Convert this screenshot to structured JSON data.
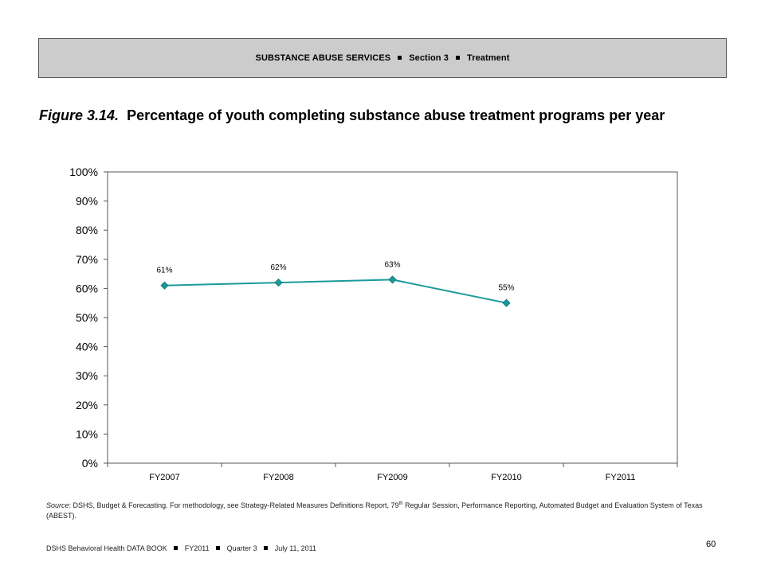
{
  "header": {
    "section_label": "SUBSTANCE ABUSE SERVICES",
    "section_number": "Section 3",
    "section_topic": "Treatment"
  },
  "figure": {
    "number": "Figure 3.14.",
    "title": "Percentage of youth completing substance abuse treatment programs per year"
  },
  "chart_data": {
    "type": "line",
    "categories": [
      "FY2007",
      "FY2008",
      "FY2009",
      "FY2010",
      "FY2011"
    ],
    "series": [
      {
        "values": [
          61,
          62,
          63,
          55,
          null
        ],
        "color": "#1a9a9a"
      }
    ],
    "data_labels": [
      "61%",
      "62%",
      "63%",
      "55%"
    ],
    "yticks": [
      "0%",
      "10%",
      "20%",
      "30%",
      "40%",
      "50%",
      "60%",
      "70%",
      "80%",
      "90%",
      "100%"
    ],
    "ylim": [
      0,
      100
    ],
    "grid": false,
    "legend": "none",
    "marker": "diamond"
  },
  "source": {
    "label": "Source",
    "text_before": ": DSHS, Budget & Forecasting. For methodology, see Strategy-Related Measures Definitions Report, 79",
    "superscript": "th",
    "text_after": " Regular Session, Performance Reporting, Automated Budget and Evaluation System of Texas (ABEST)."
  },
  "footer": {
    "book": "DSHS Behavioral Health DATA BOOK",
    "fiscal_year": "FY2011",
    "quarter": "Quarter 3",
    "date": "July 11, 2011"
  },
  "page_number": "60"
}
